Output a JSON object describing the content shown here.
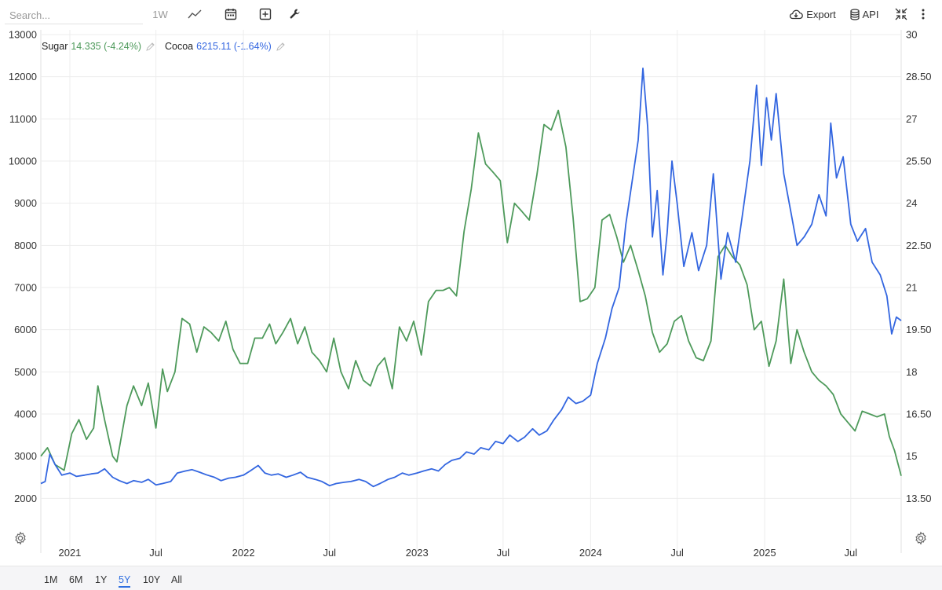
{
  "toolbar": {
    "search_placeholder": "Search...",
    "interval_label": "1W",
    "export_label": "Export",
    "api_label": "API"
  },
  "legend": {
    "sugar_name": "Sugar",
    "sugar_value": "14.335 (-4.24%)",
    "cocoa_name": "Cocoa",
    "cocoa_value": "6215.11 (-1.64%)"
  },
  "range_buttons": [
    "1M",
    "6M",
    "1Y",
    "5Y",
    "10Y",
    "All"
  ],
  "active_range": "5Y",
  "colors": {
    "sugar": "#4e9a5b",
    "cocoa": "#3366e0",
    "active": "#2f6fe0"
  },
  "chart_data": {
    "type": "line",
    "x_range": [
      "2020-11-01",
      "2025-10-15"
    ],
    "x_ticks": [
      {
        "label": "2021",
        "x": "2021-01-01"
      },
      {
        "label": "Jul",
        "x": "2021-07-01"
      },
      {
        "label": "2022",
        "x": "2022-01-01"
      },
      {
        "label": "Jul",
        "x": "2022-07-01"
      },
      {
        "label": "2023",
        "x": "2023-01-01"
      },
      {
        "label": "Jul",
        "x": "2023-07-01"
      },
      {
        "label": "2024",
        "x": "2024-01-01"
      },
      {
        "label": "Jul",
        "x": "2024-07-01"
      },
      {
        "label": "2025",
        "x": "2025-01-01"
      },
      {
        "label": "Jul",
        "x": "2025-07-01"
      }
    ],
    "left_axis": {
      "min": 1000,
      "max": 13000,
      "ticks": [
        2000,
        3000,
        4000,
        5000,
        6000,
        7000,
        8000,
        9000,
        10000,
        11000,
        12000,
        13000
      ]
    },
    "right_axis": {
      "min": 12,
      "max": 30,
      "ticks": [
        "13.50",
        "15",
        "16.50",
        "18",
        "19.50",
        "21",
        "22.50",
        "24",
        "25.50",
        "27",
        "28.50",
        "30"
      ]
    },
    "grid": true,
    "series": [
      {
        "name": "Sugar",
        "axis": "right",
        "points": [
          [
            "2020-11-01",
            15.0
          ],
          [
            "2020-11-15",
            15.3
          ],
          [
            "2020-12-01",
            14.7
          ],
          [
            "2020-12-20",
            14.5
          ],
          [
            "2021-01-05",
            15.8
          ],
          [
            "2021-01-20",
            16.3
          ],
          [
            "2021-02-05",
            15.6
          ],
          [
            "2021-02-20",
            16.0
          ],
          [
            "2021-03-01",
            17.5
          ],
          [
            "2021-03-15",
            16.3
          ],
          [
            "2021-04-01",
            15.0
          ],
          [
            "2021-04-10",
            14.8
          ],
          [
            "2021-05-01",
            16.8
          ],
          [
            "2021-05-15",
            17.5
          ],
          [
            "2021-06-01",
            16.8
          ],
          [
            "2021-06-15",
            17.6
          ],
          [
            "2021-07-01",
            16.0
          ],
          [
            "2021-07-15",
            18.1
          ],
          [
            "2021-07-25",
            17.3
          ],
          [
            "2021-08-10",
            18.0
          ],
          [
            "2021-08-25",
            19.9
          ],
          [
            "2021-09-10",
            19.7
          ],
          [
            "2021-09-25",
            18.7
          ],
          [
            "2021-10-10",
            19.6
          ],
          [
            "2021-10-25",
            19.4
          ],
          [
            "2021-11-10",
            19.1
          ],
          [
            "2021-11-25",
            19.8
          ],
          [
            "2021-12-10",
            18.8
          ],
          [
            "2021-12-25",
            18.3
          ],
          [
            "2022-01-10",
            18.3
          ],
          [
            "2022-01-25",
            19.2
          ],
          [
            "2022-02-10",
            19.2
          ],
          [
            "2022-02-25",
            19.7
          ],
          [
            "2022-03-10",
            19.0
          ],
          [
            "2022-03-25",
            19.4
          ],
          [
            "2022-04-10",
            19.9
          ],
          [
            "2022-04-25",
            19.0
          ],
          [
            "2022-05-10",
            19.6
          ],
          [
            "2022-05-25",
            18.7
          ],
          [
            "2022-06-10",
            18.4
          ],
          [
            "2022-06-25",
            18.0
          ],
          [
            "2022-07-10",
            19.2
          ],
          [
            "2022-07-25",
            18.0
          ],
          [
            "2022-08-10",
            17.4
          ],
          [
            "2022-08-25",
            18.4
          ],
          [
            "2022-09-10",
            17.7
          ],
          [
            "2022-09-25",
            17.5
          ],
          [
            "2022-10-10",
            18.2
          ],
          [
            "2022-10-25",
            18.5
          ],
          [
            "2022-11-10",
            17.4
          ],
          [
            "2022-11-25",
            19.6
          ],
          [
            "2022-12-10",
            19.1
          ],
          [
            "2022-12-25",
            19.8
          ],
          [
            "2023-01-10",
            18.6
          ],
          [
            "2023-01-25",
            20.5
          ],
          [
            "2023-02-10",
            20.9
          ],
          [
            "2023-02-25",
            20.9
          ],
          [
            "2023-03-10",
            21.0
          ],
          [
            "2023-03-25",
            20.7
          ],
          [
            "2023-04-10",
            23.0
          ],
          [
            "2023-04-25",
            24.5
          ],
          [
            "2023-05-10",
            26.5
          ],
          [
            "2023-05-25",
            25.4
          ],
          [
            "2023-06-10",
            25.1
          ],
          [
            "2023-06-25",
            24.8
          ],
          [
            "2023-07-10",
            22.6
          ],
          [
            "2023-07-25",
            24.0
          ],
          [
            "2023-08-10",
            23.7
          ],
          [
            "2023-08-25",
            23.4
          ],
          [
            "2023-09-10",
            25.0
          ],
          [
            "2023-09-25",
            26.8
          ],
          [
            "2023-10-10",
            26.6
          ],
          [
            "2023-10-25",
            27.3
          ],
          [
            "2023-11-10",
            26.0
          ],
          [
            "2023-11-25",
            23.5
          ],
          [
            "2023-12-10",
            20.5
          ],
          [
            "2023-12-25",
            20.6
          ],
          [
            "2024-01-10",
            21.0
          ],
          [
            "2024-01-25",
            23.4
          ],
          [
            "2024-02-10",
            23.6
          ],
          [
            "2024-02-25",
            22.8
          ],
          [
            "2024-03-10",
            21.9
          ],
          [
            "2024-03-25",
            22.5
          ],
          [
            "2024-04-10",
            21.6
          ],
          [
            "2024-04-25",
            20.7
          ],
          [
            "2024-05-10",
            19.4
          ],
          [
            "2024-05-25",
            18.7
          ],
          [
            "2024-06-10",
            19.0
          ],
          [
            "2024-06-25",
            19.8
          ],
          [
            "2024-07-10",
            20.0
          ],
          [
            "2024-07-25",
            19.1
          ],
          [
            "2024-08-10",
            18.5
          ],
          [
            "2024-08-25",
            18.4
          ],
          [
            "2024-09-10",
            19.1
          ],
          [
            "2024-09-25",
            22.1
          ],
          [
            "2024-10-10",
            22.5
          ],
          [
            "2024-10-25",
            22.1
          ],
          [
            "2024-11-10",
            21.8
          ],
          [
            "2024-11-25",
            21.1
          ],
          [
            "2024-12-10",
            19.5
          ],
          [
            "2024-12-25",
            19.8
          ],
          [
            "2025-01-10",
            18.2
          ],
          [
            "2025-01-25",
            19.1
          ],
          [
            "2025-02-10",
            21.3
          ],
          [
            "2025-02-25",
            18.3
          ],
          [
            "2025-03-10",
            19.5
          ],
          [
            "2025-03-25",
            18.7
          ],
          [
            "2025-04-10",
            18.0
          ],
          [
            "2025-04-25",
            17.7
          ],
          [
            "2025-05-10",
            17.5
          ],
          [
            "2025-05-25",
            17.2
          ],
          [
            "2025-06-10",
            16.5
          ],
          [
            "2025-06-25",
            16.2
          ],
          [
            "2025-07-10",
            15.9
          ],
          [
            "2025-07-25",
            16.6
          ],
          [
            "2025-08-10",
            16.5
          ],
          [
            "2025-08-25",
            16.4
          ],
          [
            "2025-09-10",
            16.5
          ],
          [
            "2025-09-20",
            15.7
          ],
          [
            "2025-10-01",
            15.2
          ],
          [
            "2025-10-15",
            14.3
          ]
        ]
      },
      {
        "name": "Cocoa",
        "axis": "left",
        "points": [
          [
            "2020-11-01",
            2350
          ],
          [
            "2020-11-10",
            2400
          ],
          [
            "2020-11-20",
            3050
          ],
          [
            "2020-12-01",
            2800
          ],
          [
            "2020-12-15",
            2550
          ],
          [
            "2021-01-01",
            2600
          ],
          [
            "2021-01-15",
            2520
          ],
          [
            "2021-02-01",
            2550
          ],
          [
            "2021-02-15",
            2580
          ],
          [
            "2021-03-01",
            2600
          ],
          [
            "2021-03-15",
            2700
          ],
          [
            "2021-04-01",
            2500
          ],
          [
            "2021-04-15",
            2420
          ],
          [
            "2021-05-01",
            2350
          ],
          [
            "2021-05-15",
            2420
          ],
          [
            "2021-06-01",
            2380
          ],
          [
            "2021-06-15",
            2450
          ],
          [
            "2021-07-01",
            2320
          ],
          [
            "2021-07-15",
            2350
          ],
          [
            "2021-08-01",
            2400
          ],
          [
            "2021-08-15",
            2600
          ],
          [
            "2021-09-01",
            2650
          ],
          [
            "2021-09-15",
            2680
          ],
          [
            "2021-10-01",
            2620
          ],
          [
            "2021-10-15",
            2560
          ],
          [
            "2021-11-01",
            2500
          ],
          [
            "2021-11-15",
            2420
          ],
          [
            "2021-12-01",
            2480
          ],
          [
            "2021-12-15",
            2500
          ],
          [
            "2022-01-01",
            2550
          ],
          [
            "2022-01-15",
            2650
          ],
          [
            "2022-02-01",
            2780
          ],
          [
            "2022-02-15",
            2600
          ],
          [
            "2022-03-01",
            2550
          ],
          [
            "2022-03-15",
            2580
          ],
          [
            "2022-04-01",
            2500
          ],
          [
            "2022-04-15",
            2550
          ],
          [
            "2022-05-01",
            2620
          ],
          [
            "2022-05-15",
            2500
          ],
          [
            "2022-06-01",
            2450
          ],
          [
            "2022-06-15",
            2400
          ],
          [
            "2022-07-01",
            2300
          ],
          [
            "2022-07-15",
            2350
          ],
          [
            "2022-08-01",
            2380
          ],
          [
            "2022-08-15",
            2400
          ],
          [
            "2022-09-01",
            2450
          ],
          [
            "2022-09-15",
            2400
          ],
          [
            "2022-10-01",
            2280
          ],
          [
            "2022-10-15",
            2350
          ],
          [
            "2022-11-01",
            2450
          ],
          [
            "2022-11-15",
            2500
          ],
          [
            "2022-12-01",
            2600
          ],
          [
            "2022-12-15",
            2550
          ],
          [
            "2023-01-01",
            2600
          ],
          [
            "2023-01-15",
            2650
          ],
          [
            "2023-02-01",
            2700
          ],
          [
            "2023-02-15",
            2650
          ],
          [
            "2023-03-01",
            2800
          ],
          [
            "2023-03-15",
            2900
          ],
          [
            "2023-04-01",
            2950
          ],
          [
            "2023-04-15",
            3100
          ],
          [
            "2023-05-01",
            3050
          ],
          [
            "2023-05-15",
            3200
          ],
          [
            "2023-06-01",
            3150
          ],
          [
            "2023-06-15",
            3350
          ],
          [
            "2023-07-01",
            3300
          ],
          [
            "2023-07-15",
            3500
          ],
          [
            "2023-08-01",
            3350
          ],
          [
            "2023-08-15",
            3450
          ],
          [
            "2023-09-01",
            3650
          ],
          [
            "2023-09-15",
            3500
          ],
          [
            "2023-10-01",
            3600
          ],
          [
            "2023-10-15",
            3850
          ],
          [
            "2023-11-01",
            4100
          ],
          [
            "2023-11-15",
            4400
          ],
          [
            "2023-12-01",
            4250
          ],
          [
            "2023-12-15",
            4300
          ],
          [
            "2024-01-01",
            4450
          ],
          [
            "2024-01-15",
            5200
          ],
          [
            "2024-02-01",
            5800
          ],
          [
            "2024-02-15",
            6500
          ],
          [
            "2024-03-01",
            7000
          ],
          [
            "2024-03-15",
            8500
          ],
          [
            "2024-04-01",
            9800
          ],
          [
            "2024-04-10",
            10500
          ],
          [
            "2024-04-20",
            12200
          ],
          [
            "2024-04-30",
            10800
          ],
          [
            "2024-05-10",
            8200
          ],
          [
            "2024-05-20",
            9300
          ],
          [
            "2024-06-01",
            7300
          ],
          [
            "2024-06-10",
            8300
          ],
          [
            "2024-06-20",
            10000
          ],
          [
            "2024-07-01",
            9000
          ],
          [
            "2024-07-15",
            7500
          ],
          [
            "2024-08-01",
            8300
          ],
          [
            "2024-08-15",
            7400
          ],
          [
            "2024-09-01",
            8000
          ],
          [
            "2024-09-15",
            9700
          ],
          [
            "2024-10-01",
            7200
          ],
          [
            "2024-10-15",
            8300
          ],
          [
            "2024-11-01",
            7600
          ],
          [
            "2024-11-15",
            8700
          ],
          [
            "2024-12-01",
            10000
          ],
          [
            "2024-12-15",
            11800
          ],
          [
            "2024-12-25",
            9900
          ],
          [
            "2025-01-05",
            11500
          ],
          [
            "2025-01-15",
            10500
          ],
          [
            "2025-01-25",
            11600
          ],
          [
            "2025-02-10",
            9700
          ],
          [
            "2025-02-25",
            8800
          ],
          [
            "2025-03-10",
            8000
          ],
          [
            "2025-03-25",
            8200
          ],
          [
            "2025-04-10",
            8500
          ],
          [
            "2025-04-25",
            9200
          ],
          [
            "2025-05-10",
            8700
          ],
          [
            "2025-05-20",
            10900
          ],
          [
            "2025-06-01",
            9600
          ],
          [
            "2025-06-15",
            10100
          ],
          [
            "2025-07-01",
            8500
          ],
          [
            "2025-07-15",
            8100
          ],
          [
            "2025-08-01",
            8400
          ],
          [
            "2025-08-15",
            7600
          ],
          [
            "2025-09-01",
            7300
          ],
          [
            "2025-09-15",
            6800
          ],
          [
            "2025-09-25",
            5900
          ],
          [
            "2025-10-05",
            6300
          ],
          [
            "2025-10-15",
            6215
          ]
        ]
      }
    ]
  }
}
